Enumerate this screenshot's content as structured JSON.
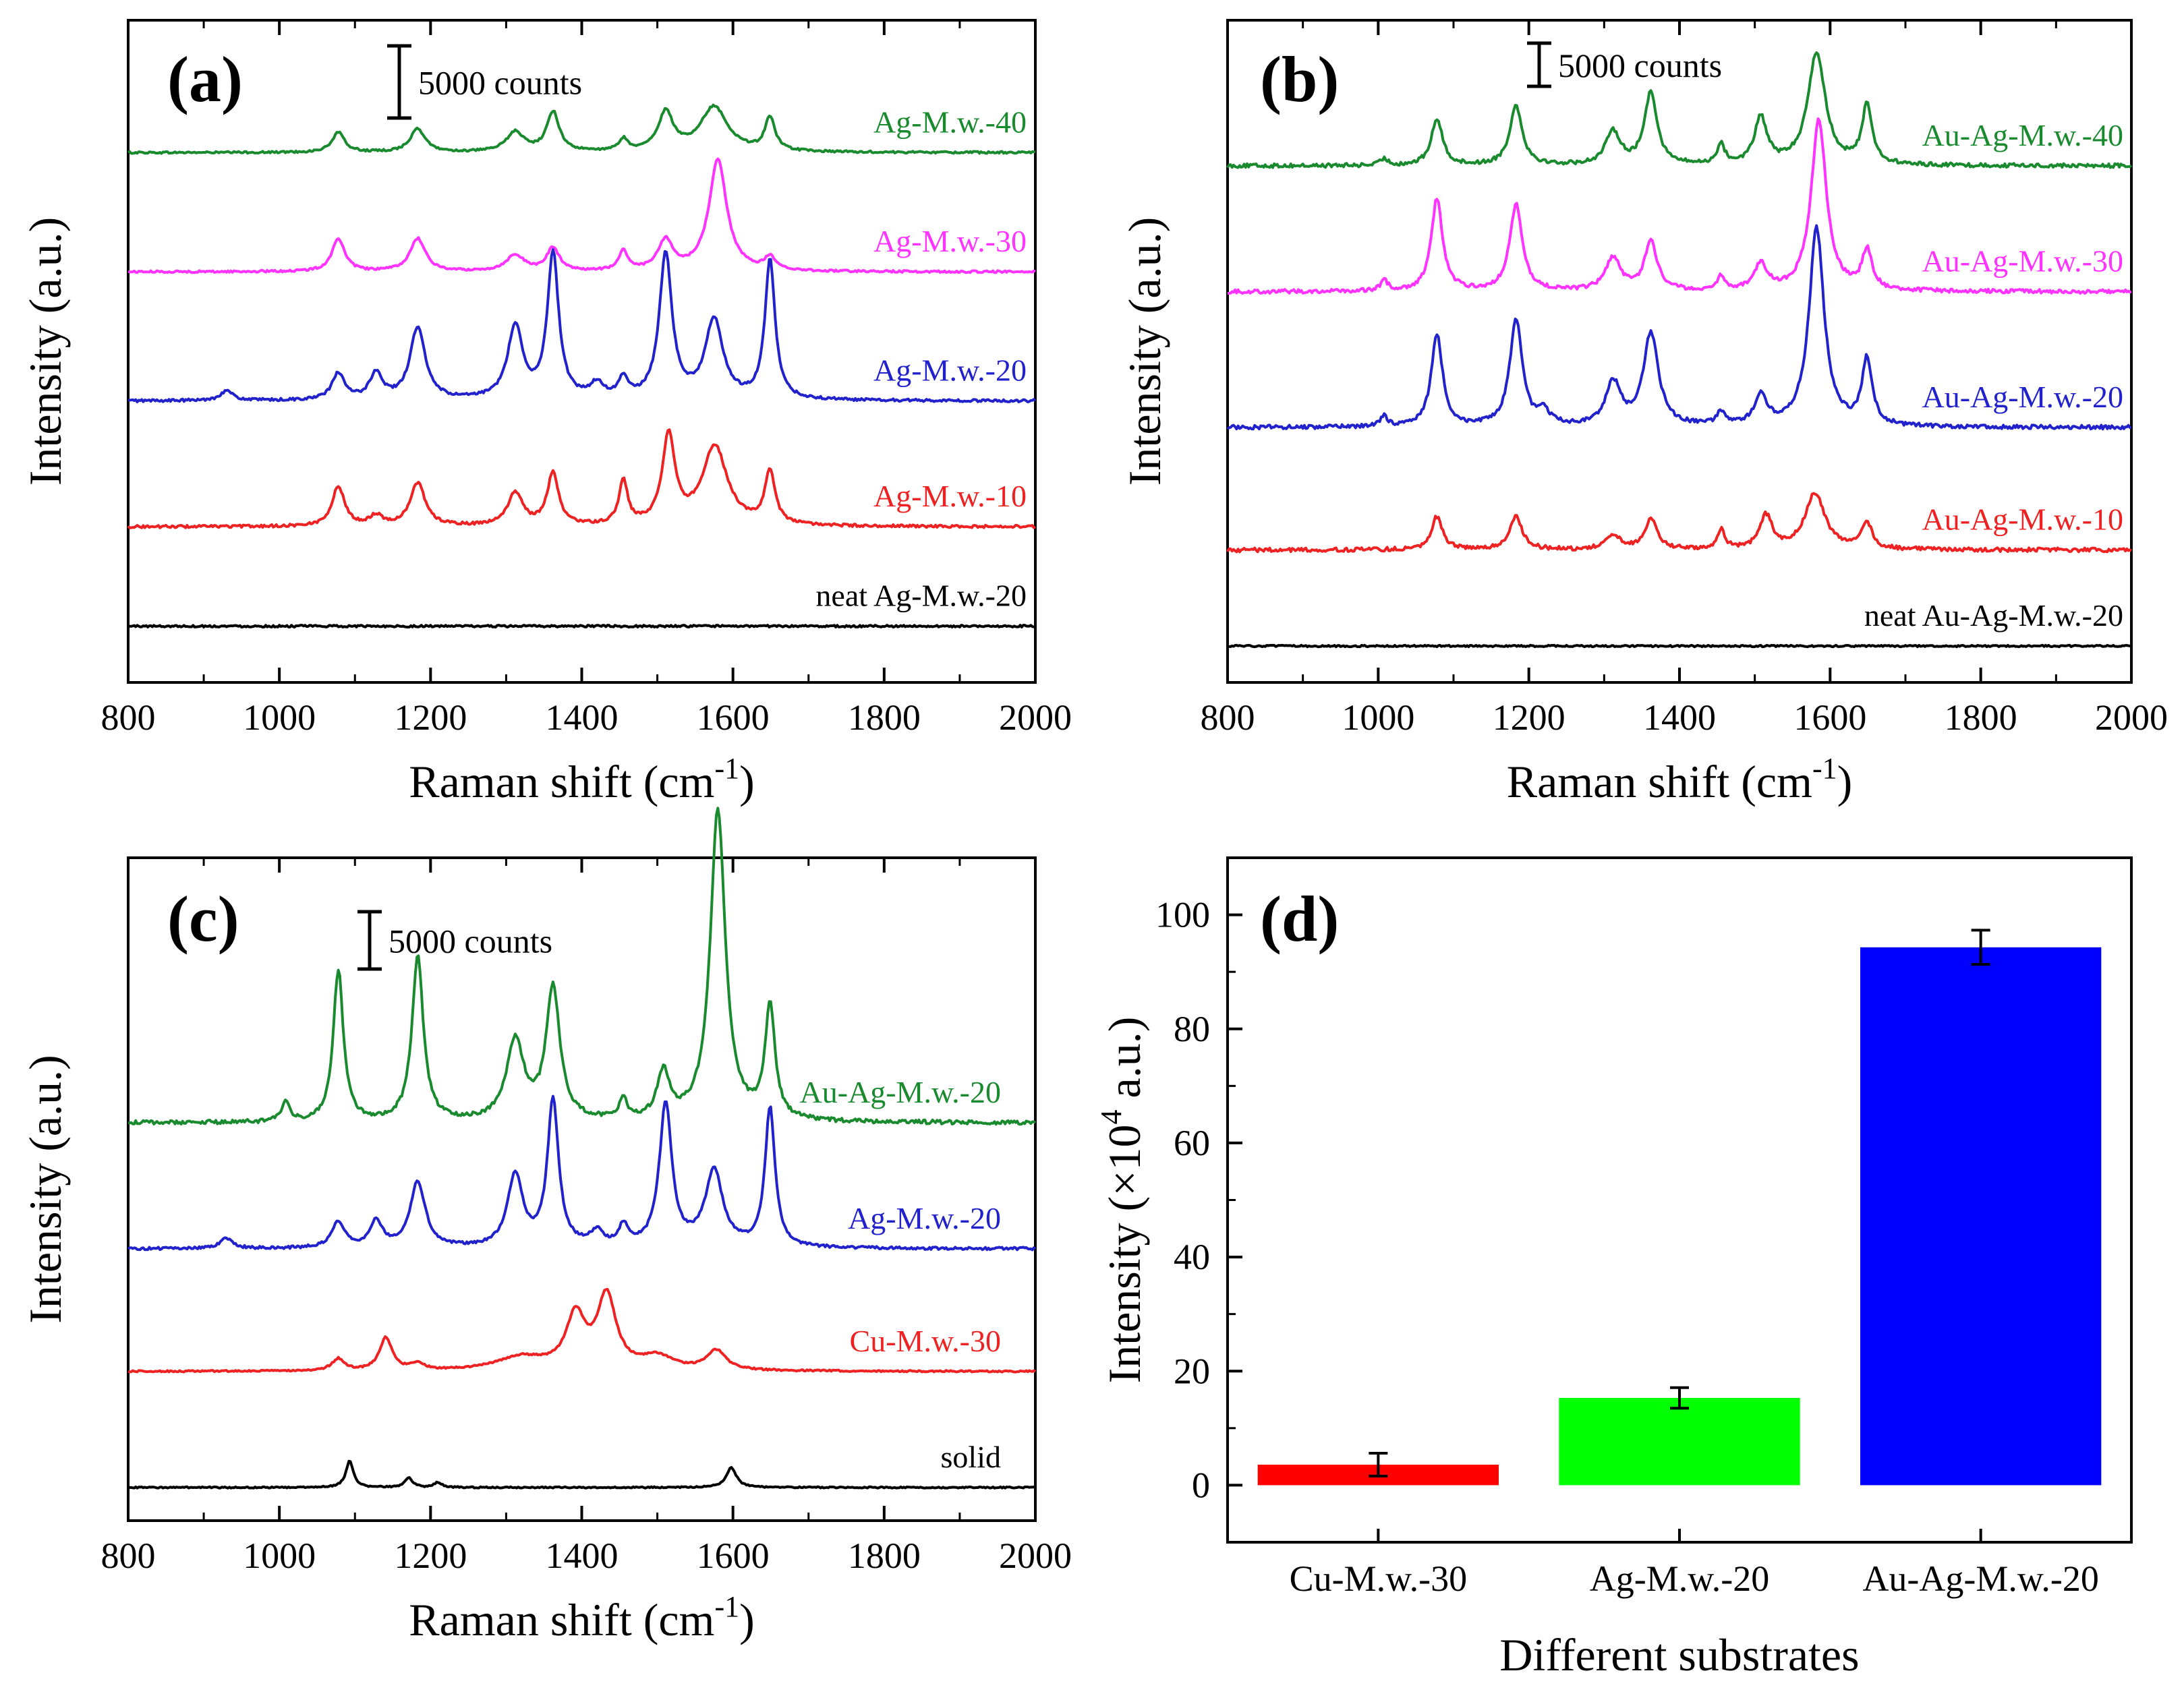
{
  "figure": {
    "chart_data": [
      {
        "panel": "(a)",
        "type": "line",
        "xlabel": "Raman shift (cm",
        "xlabel_sup": "-1",
        "xlabel_end": ")",
        "ylabel": "Intensity (a.u.)",
        "xlim": [
          800,
          2000
        ],
        "xticks": [
          800,
          1000,
          1200,
          1400,
          1600,
          1800,
          2000
        ],
        "scale_bar": "5000 counts",
        "series": [
          {
            "name": "Ag-M.w.-40",
            "color": "#1a8a2e",
            "offset": 0.8,
            "noise": 0.0015,
            "peaks": [
              [
                1078,
                0.03,
                10
              ],
              [
                1183,
                0.035,
                12
              ],
              [
                1312,
                0.03,
                14
              ],
              [
                1362,
                0.06,
                10
              ],
              [
                1455,
                0.018,
                7
              ],
              [
                1511,
                0.058,
                12
              ],
              [
                1575,
                0.068,
                22
              ],
              [
                1649,
                0.05,
                8
              ]
            ]
          },
          {
            "name": "Ag-M.w.-30",
            "color": "#ff33ff",
            "offset": 0.62,
            "noise": 0.0015,
            "peaks": [
              [
                1078,
                0.05,
                10
              ],
              [
                1183,
                0.05,
                12
              ],
              [
                1312,
                0.025,
                14
              ],
              [
                1362,
                0.035,
                10
              ],
              [
                1455,
                0.03,
                7
              ],
              [
                1511,
                0.045,
                12
              ],
              [
                1580,
                0.17,
                14
              ],
              [
                1649,
                0.02,
                8
              ]
            ]
          },
          {
            "name": "Ag-M.w.-20",
            "color": "#2222cc",
            "offset": 0.425,
            "noise": 0.002,
            "peaks": [
              [
                930,
                0.015,
                10
              ],
              [
                1078,
                0.04,
                10
              ],
              [
                1128,
                0.04,
                10
              ],
              [
                1183,
                0.11,
                12
              ],
              [
                1312,
                0.11,
                12
              ],
              [
                1362,
                0.22,
                9
              ],
              [
                1420,
                0.022,
                10
              ],
              [
                1455,
                0.03,
                7
              ],
              [
                1511,
                0.22,
                10
              ],
              [
                1575,
                0.12,
                14
              ],
              [
                1649,
                0.21,
                8
              ]
            ]
          },
          {
            "name": "Ag-M.w.-10",
            "color": "#ee2222",
            "offset": 0.235,
            "noise": 0.002,
            "peaks": [
              [
                1078,
                0.06,
                10
              ],
              [
                1128,
                0.015,
                10
              ],
              [
                1183,
                0.065,
                12
              ],
              [
                1312,
                0.05,
                12
              ],
              [
                1362,
                0.08,
                9
              ],
              [
                1455,
                0.065,
                7
              ],
              [
                1515,
                0.135,
                10
              ],
              [
                1576,
                0.12,
                20
              ],
              [
                1649,
                0.08,
                8
              ]
            ]
          },
          {
            "name": "neat Ag-M.w.-20",
            "color": "#000000",
            "offset": 0.085,
            "noise": 0.0015,
            "peaks": []
          }
        ]
      },
      {
        "panel": "(b)",
        "type": "line",
        "xlabel": "Raman shift (cm",
        "xlabel_sup": "-1",
        "xlabel_end": ")",
        "ylabel": "Intensity (a.u.)",
        "xlim": [
          800,
          2000
        ],
        "xticks": [
          800,
          1000,
          1200,
          1400,
          1600,
          1800,
          2000
        ],
        "scale_bar": "5000 counts",
        "series": [
          {
            "name": "Au-Ag-M.w.-40",
            "color": "#1a8a2e",
            "offset": 0.78,
            "noise": 0.003,
            "peaks": [
              [
                1008,
                0.01,
                6
              ],
              [
                1078,
                0.07,
                9
              ],
              [
                1183,
                0.09,
                10
              ],
              [
                1312,
                0.05,
                12
              ],
              [
                1362,
                0.11,
                10
              ],
              [
                1455,
                0.03,
                6
              ],
              [
                1508,
                0.07,
                10
              ],
              [
                1582,
                0.17,
                14
              ],
              [
                1649,
                0.09,
                8
              ]
            ]
          },
          {
            "name": "Au-Ag-M.w.-30",
            "color": "#ff33ff",
            "offset": 0.59,
            "noise": 0.003,
            "peaks": [
              [
                1008,
                0.015,
                6
              ],
              [
                1078,
                0.14,
                9
              ],
              [
                1183,
                0.13,
                10
              ],
              [
                1312,
                0.05,
                12
              ],
              [
                1362,
                0.075,
                10
              ],
              [
                1455,
                0.02,
                6
              ],
              [
                1508,
                0.04,
                10
              ],
              [
                1585,
                0.26,
                12
              ],
              [
                1649,
                0.06,
                8
              ]
            ]
          },
          {
            "name": "Au-Ag-M.w.-20",
            "color": "#2222cc",
            "offset": 0.385,
            "noise": 0.003,
            "peaks": [
              [
                1008,
                0.015,
                6
              ],
              [
                1078,
                0.14,
                9
              ],
              [
                1183,
                0.16,
                10
              ],
              [
                1220,
                0.02,
                10
              ],
              [
                1312,
                0.065,
                12
              ],
              [
                1362,
                0.14,
                12
              ],
              [
                1455,
                0.02,
                6
              ],
              [
                1508,
                0.045,
                10
              ],
              [
                1582,
                0.3,
                12
              ],
              [
                1649,
                0.1,
                8
              ]
            ]
          },
          {
            "name": "Au-Ag-M.w.-10",
            "color": "#ee2222",
            "offset": 0.2,
            "noise": 0.003,
            "peaks": [
              [
                1078,
                0.05,
                9
              ],
              [
                1183,
                0.05,
                10
              ],
              [
                1312,
                0.02,
                12
              ],
              [
                1362,
                0.045,
                10
              ],
              [
                1455,
                0.03,
                6
              ],
              [
                1515,
                0.05,
                10
              ],
              [
                1580,
                0.085,
                16
              ],
              [
                1649,
                0.04,
                8
              ]
            ]
          },
          {
            "name": "neat Au-Ag-M.w.-20",
            "color": "#000000",
            "offset": 0.055,
            "noise": 0.0012,
            "peaks": []
          }
        ]
      },
      {
        "panel": "(c)",
        "type": "line",
        "xlabel": "Raman shift (cm",
        "xlabel_sup": "-1",
        "xlabel_end": ")",
        "ylabel": "Intensity (a.u.)",
        "xlim": [
          800,
          2000
        ],
        "xticks": [
          800,
          1000,
          1200,
          1400,
          1600,
          1800,
          2000
        ],
        "scale_bar": "5000 counts",
        "series": [
          {
            "name": "Au-Ag-M.w.-20",
            "color": "#1a8a2e",
            "offset": 0.6,
            "noise": 0.003,
            "peaks": [
              [
                1008,
                0.03,
                6
              ],
              [
                1078,
                0.23,
                8
              ],
              [
                1183,
                0.25,
                9
              ],
              [
                1312,
                0.12,
                14
              ],
              [
                1362,
                0.2,
                11
              ],
              [
                1455,
                0.03,
                6
              ],
              [
                1508,
                0.07,
                10
              ],
              [
                1580,
                0.47,
                12
              ],
              [
                1649,
                0.17,
                8
              ]
            ]
          },
          {
            "name": "Ag-M.w.-20",
            "color": "#2222cc",
            "offset": 0.41,
            "noise": 0.002,
            "peaks": [
              [
                930,
                0.015,
                10
              ],
              [
                1078,
                0.04,
                10
              ],
              [
                1128,
                0.04,
                10
              ],
              [
                1183,
                0.1,
                12
              ],
              [
                1312,
                0.11,
                12
              ],
              [
                1362,
                0.22,
                9
              ],
              [
                1420,
                0.022,
                10
              ],
              [
                1455,
                0.03,
                7
              ],
              [
                1511,
                0.215,
                10
              ],
              [
                1575,
                0.115,
                14
              ],
              [
                1649,
                0.21,
                8
              ]
            ]
          },
          {
            "name": "Cu-M.w.-30",
            "color": "#ee2222",
            "offset": 0.225,
            "noise": 0.0012,
            "peaks": [
              [
                1078,
                0.018,
                10
              ],
              [
                1141,
                0.05,
                10
              ],
              [
                1183,
                0.01,
                10
              ],
              [
                1320,
                0.02,
                40
              ],
              [
                1392,
                0.08,
                15
              ],
              [
                1433,
                0.11,
                15
              ],
              [
                1500,
                0.02,
                25
              ],
              [
                1578,
                0.03,
                15
              ]
            ]
          },
          {
            "name": "solid",
            "color": "#000000",
            "offset": 0.05,
            "noise": 0.001,
            "peaks": [
              [
                1093,
                0.04,
                6
              ],
              [
                1171,
                0.015,
                6
              ],
              [
                1210,
                0.008,
                6
              ],
              [
                1598,
                0.03,
                8
              ]
            ]
          }
        ]
      },
      {
        "panel": "(d)",
        "type": "bar",
        "xlabel": "Different substrates",
        "ylabel": "Intensity (×10",
        "ylabel_sup": "4",
        "ylabel_end": " a.u.)",
        "ylim": [
          -10,
          110
        ],
        "yticks": [
          0,
          20,
          40,
          60,
          80,
          100
        ],
        "categories": [
          "Cu-M.w.-30",
          "Ag-M.w.-20",
          "Au-Ag-M.w.-20"
        ],
        "values": [
          3.6,
          15.3,
          94.3
        ],
        "errors": [
          2.0,
          1.8,
          3.0
        ],
        "colors": [
          "#ff0000",
          "#00ff00",
          "#0000ff"
        ]
      }
    ]
  }
}
